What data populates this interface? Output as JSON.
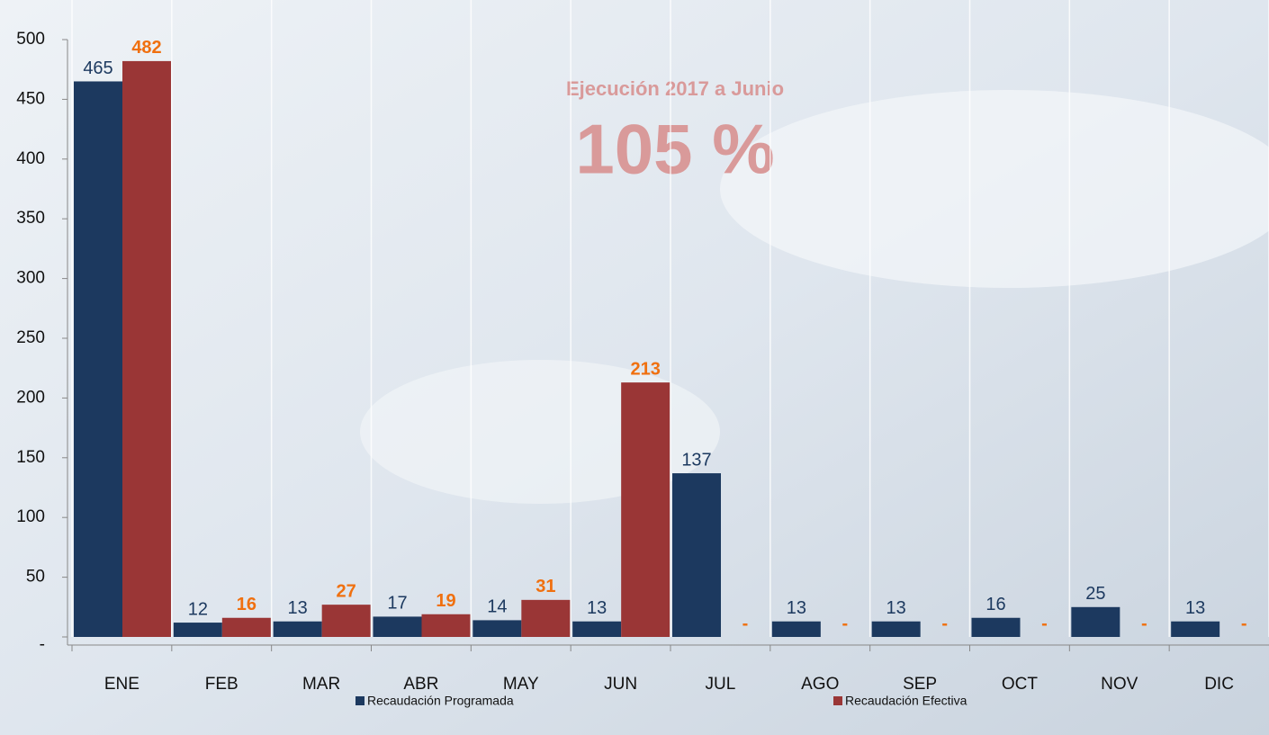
{
  "chart_data": {
    "type": "bar",
    "annotations": [
      "Ejecución 2017 a Junio",
      "105 %"
    ],
    "categories": [
      "ENE",
      "FEB",
      "MAR",
      "ABR",
      "MAY",
      "JUN",
      "JUL",
      "AGO",
      "SEP",
      "OCT",
      "NOV",
      "DIC"
    ],
    "series": [
      {
        "name": "Recaudación Programada",
        "color": "#1c395f",
        "label_color": "#1c395f",
        "values": [
          465,
          12,
          13,
          17,
          14,
          13,
          137,
          13,
          13,
          16,
          25,
          13
        ]
      },
      {
        "name": "Recaudación Efectiva",
        "color": "#9a3636",
        "label_color": "#f0700f",
        "values": [
          482,
          16,
          27,
          19,
          31,
          213,
          0,
          0,
          0,
          0,
          0,
          0
        ],
        "value_labels": [
          "482",
          "16",
          "27",
          "19",
          "31",
          "213",
          "-",
          "-",
          "-",
          "-",
          "-",
          "-"
        ]
      }
    ],
    "ylim": [
      0,
      500
    ],
    "yticks": [
      {
        "value": 0,
        "label": "-"
      },
      50,
      100,
      150,
      200,
      250,
      300,
      350,
      400,
      450,
      500
    ],
    "grid": true
  }
}
